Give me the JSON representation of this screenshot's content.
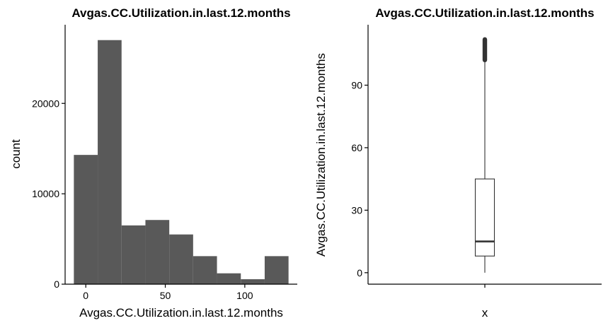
{
  "chart_data": [
    {
      "type": "bar",
      "title": "Avgas.CC.Utilization.in.last.12.months",
      "xlabel": "Avgas.CC.Utilization.in.last.12.months",
      "ylabel": "count",
      "xlim": [
        -13,
        133
      ],
      "ylim": [
        0,
        28700
      ],
      "xticks": [
        0,
        50,
        100
      ],
      "yticks": [
        0,
        10000,
        20000
      ],
      "bins": [
        {
          "x0": -7.5,
          "x1": 7.5,
          "count": 14300
        },
        {
          "x0": 7.5,
          "x1": 22.5,
          "count": 27000
        },
        {
          "x0": 22.5,
          "x1": 37.5,
          "count": 6500
        },
        {
          "x0": 37.5,
          "x1": 52.5,
          "count": 7100
        },
        {
          "x0": 52.5,
          "x1": 67.5,
          "count": 5500
        },
        {
          "x0": 67.5,
          "x1": 82.5,
          "count": 3100
        },
        {
          "x0": 82.5,
          "x1": 97.5,
          "count": 1200
        },
        {
          "x0": 97.5,
          "x1": 112.5,
          "count": 550
        },
        {
          "x0": 112.5,
          "x1": 127.5,
          "count": 3100
        }
      ],
      "grid": false
    },
    {
      "type": "boxplot",
      "title": "Avgas.CC.Utilization.in.last.12.months",
      "xlabel": "x",
      "ylabel": "Avgas.CC.Utilization.in.last.12.months",
      "ylim": [
        -5.5,
        119
      ],
      "yticks": [
        0,
        30,
        60,
        90
      ],
      "box": {
        "min": 0,
        "q1": 8,
        "median": 15,
        "q3": 45,
        "whisker_high": 101,
        "outlier_range": [
          101,
          113
        ]
      },
      "grid": false
    }
  ]
}
